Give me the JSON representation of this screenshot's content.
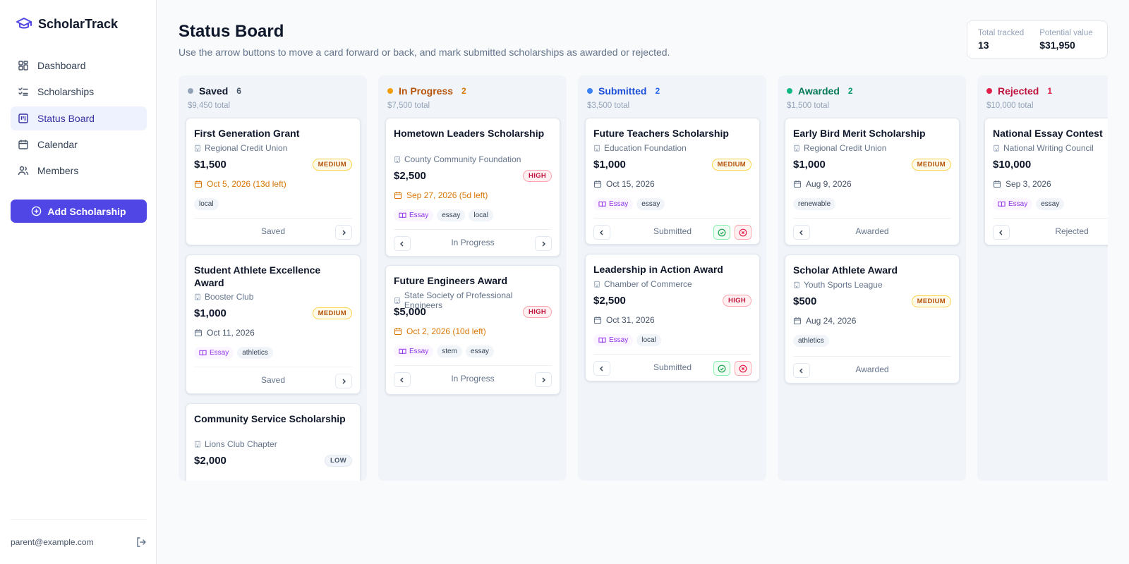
{
  "app": {
    "name": "ScholarTrack"
  },
  "nav": {
    "items": [
      {
        "label": "Dashboard",
        "icon": "dashboard-icon"
      },
      {
        "label": "Scholarships",
        "icon": "list-check-icon"
      },
      {
        "label": "Status Board",
        "icon": "kanban-icon",
        "active": true
      },
      {
        "label": "Calendar",
        "icon": "calendar-icon"
      },
      {
        "label": "Members",
        "icon": "users-icon"
      }
    ]
  },
  "sidebar": {
    "add_label": "Add Scholarship",
    "user_email": "parent@example.com"
  },
  "header": {
    "title": "Status Board",
    "subtitle": "Use the arrow buttons to move a card forward or back, and mark submitted scholarships as awarded or rejected."
  },
  "stats": {
    "total_label": "Total tracked",
    "total_value": "13",
    "potential_label": "Potential value",
    "potential_value": "$31,950"
  },
  "colors": {
    "accent": "#4f46e5",
    "saved": "#94a3b8",
    "in_progress": "#f59e0b",
    "submitted": "#3b82f6",
    "awarded": "#10b981",
    "rejected": "#e11d48"
  },
  "columns": [
    {
      "name": "Saved",
      "count": "6",
      "total": "$9,450 total",
      "cards": [
        {
          "title": "First Generation Grant",
          "org": "Regional Credit Union",
          "amount": "$1,500",
          "priority": "MEDIUM",
          "deadline": "Oct 5, 2026 (13d left)",
          "tags": [
            "local"
          ],
          "status": "Saved"
        },
        {
          "title": "Student Athlete Excellence Award",
          "org": "Booster Club",
          "amount": "$1,000",
          "priority": "MEDIUM",
          "deadline": "Oct 11, 2026",
          "tags": [
            "Essay",
            "athletics"
          ],
          "status": "Saved"
        },
        {
          "title": "Community Service Scholarship",
          "org": "Lions Club Chapter",
          "amount": "$2,000",
          "priority": "LOW"
        }
      ]
    },
    {
      "name": "In Progress",
      "count": "2",
      "total": "$7,500 total",
      "cards": [
        {
          "title": "Hometown Leaders Scholarship",
          "org": "County Community Foundation",
          "amount": "$2,500",
          "priority": "HIGH",
          "deadline": "Sep 27, 2026 (5d left)",
          "tags": [
            "Essay",
            "essay",
            "local"
          ],
          "status": "In Progress"
        },
        {
          "title": "Future Engineers Award",
          "org": "State Society of Professional Engineers",
          "amount": "$5,000",
          "priority": "HIGH",
          "deadline": "Oct 2, 2026 (10d left)",
          "tags": [
            "Essay",
            "stem",
            "essay"
          ],
          "status": "In Progress"
        }
      ]
    },
    {
      "name": "Submitted",
      "count": "2",
      "total": "$3,500 total",
      "cards": [
        {
          "title": "Future Teachers Scholarship",
          "org": "Education Foundation",
          "amount": "$1,000",
          "priority": "MEDIUM",
          "deadline": "Oct 15, 2026",
          "tags": [
            "Essay",
            "essay"
          ],
          "status": "Submitted"
        },
        {
          "title": "Leadership in Action Award",
          "org": "Chamber of Commerce",
          "amount": "$2,500",
          "priority": "HIGH",
          "deadline": "Oct 31, 2026",
          "tags": [
            "Essay",
            "local"
          ],
          "status": "Submitted"
        }
      ]
    },
    {
      "name": "Awarded",
      "count": "2",
      "total": "$1,500 total",
      "cards": [
        {
          "title": "Early Bird Merit Scholarship",
          "org": "Regional Credit Union",
          "amount": "$1,000",
          "priority": "MEDIUM",
          "deadline": "Aug 9, 2026",
          "tags": [
            "renewable"
          ],
          "status": "Awarded"
        },
        {
          "title": "Scholar Athlete Award",
          "org": "Youth Sports League",
          "amount": "$500",
          "priority": "MEDIUM",
          "deadline": "Aug 24, 2026",
          "tags": [
            "athletics"
          ],
          "status": "Awarded"
        }
      ]
    },
    {
      "name": "Rejected",
      "count": "1",
      "total": "$10,000 total",
      "cards": [
        {
          "title": "National Essay Contest",
          "org": "National Writing Council",
          "amount": "$10,000",
          "deadline": "Sep 3, 2026",
          "tags": [
            "Essay",
            "essay"
          ],
          "status": "Rejected"
        }
      ]
    }
  ]
}
